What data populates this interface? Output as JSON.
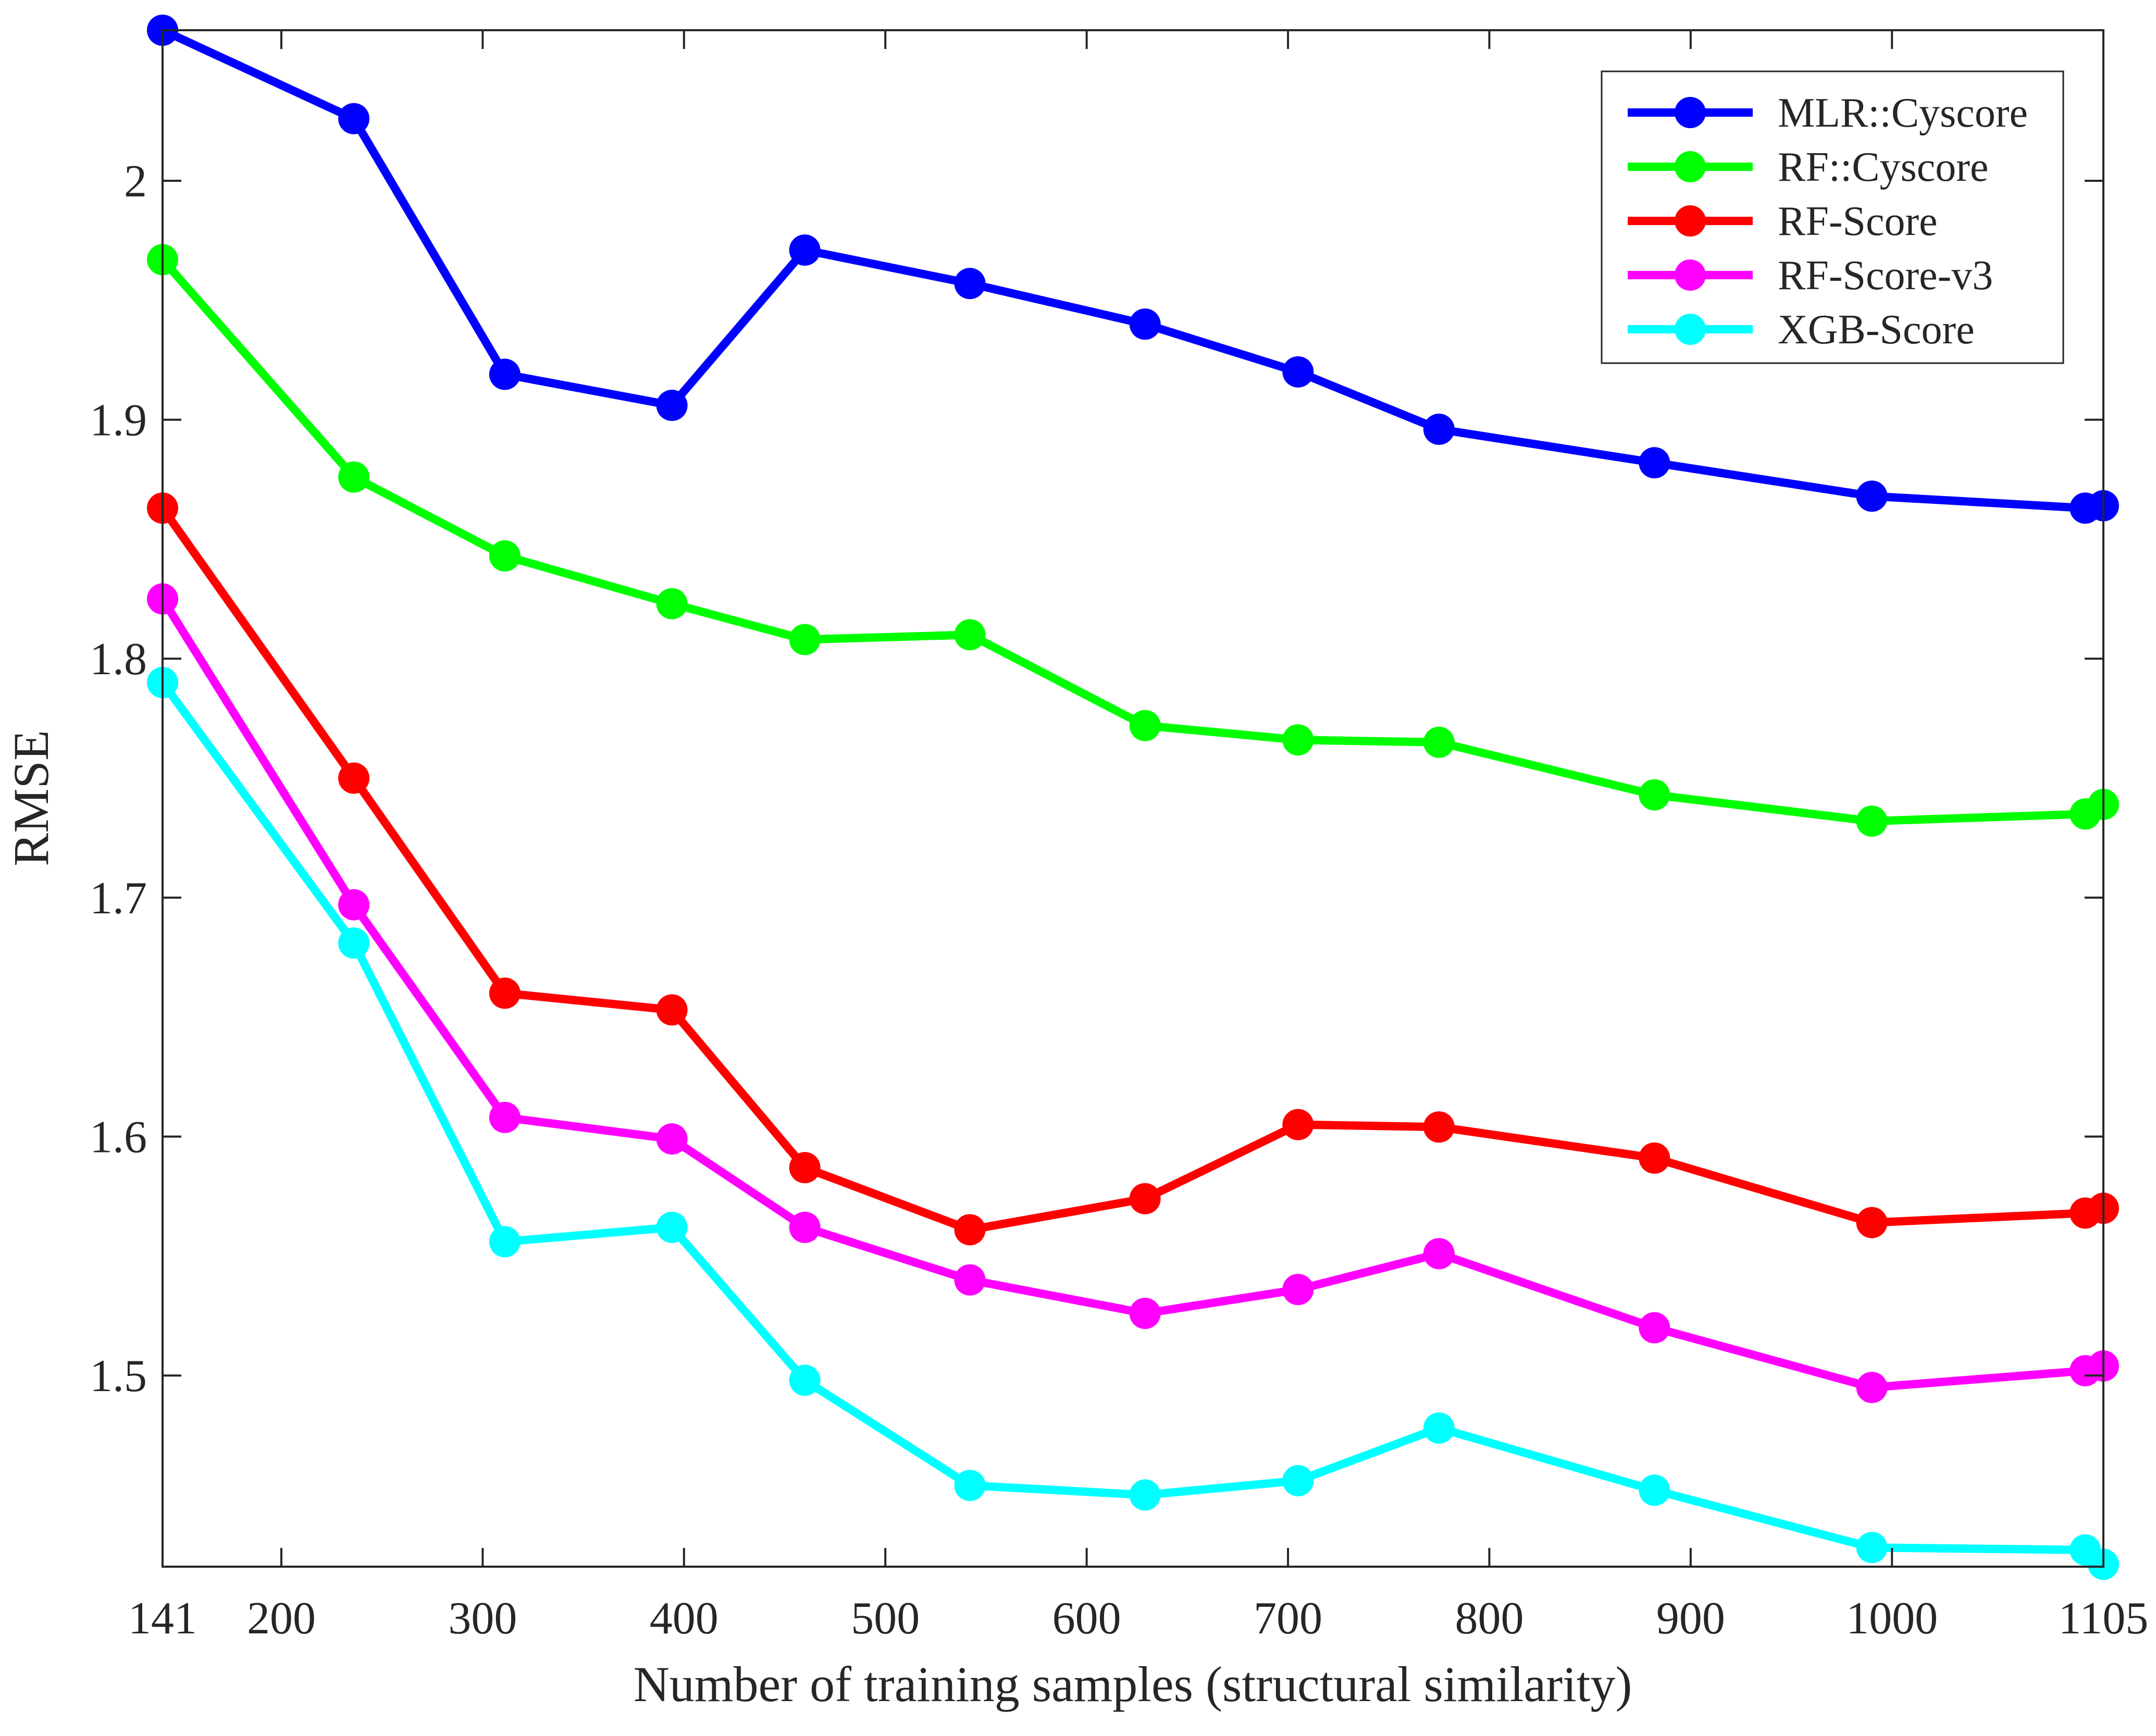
{
  "chart_data": {
    "type": "line",
    "title": "",
    "xlabel": "Number of training samples (structural similarity)",
    "ylabel": "RMSE",
    "xlim": [
      141,
      1105
    ],
    "ylim": [
      1.42,
      2.063
    ],
    "xticks": [
      141,
      200,
      300,
      400,
      500,
      600,
      700,
      800,
      900,
      1000,
      1105
    ],
    "xtick_labels": [
      "141",
      "200",
      "300",
      "400",
      "500",
      "600",
      "700",
      "800",
      "900",
      "1000",
      "1105"
    ],
    "yticks": [
      1.5,
      1.6,
      1.7,
      1.8,
      1.9,
      2.0
    ],
    "ytick_labels": [
      "1.5",
      "1.6",
      "1.7",
      "1.8",
      "1.9",
      "2"
    ],
    "grid": false,
    "legend_position": "top-right",
    "x": [
      141,
      236,
      311,
      394,
      460,
      542,
      629,
      705,
      775,
      882,
      990,
      1096,
      1105
    ],
    "series": [
      {
        "name": "MLR::Cyscore",
        "color": "#0000ff",
        "values": [
          2.063,
          2.026,
          1.919,
          1.906,
          1.971,
          1.957,
          1.94,
          1.92,
          1.896,
          1.882,
          1.868,
          1.863,
          1.864
        ]
      },
      {
        "name": "RF::Cyscore",
        "color": "#00ff00",
        "values": [
          1.967,
          1.876,
          1.843,
          1.823,
          1.808,
          1.81,
          1.772,
          1.766,
          1.765,
          1.743,
          1.732,
          1.735,
          1.739
        ]
      },
      {
        "name": "RF-Score",
        "color": "#ff0000",
        "values": [
          1.863,
          1.75,
          1.66,
          1.653,
          1.587,
          1.561,
          1.574,
          1.605,
          1.604,
          1.591,
          1.564,
          1.568,
          1.57
        ]
      },
      {
        "name": "RF-Score-v3",
        "color": "#ff00ff",
        "values": [
          1.825,
          1.697,
          1.608,
          1.599,
          1.562,
          1.54,
          1.526,
          1.536,
          1.551,
          1.52,
          1.495,
          1.502,
          1.504
        ]
      },
      {
        "name": "XGB-Score",
        "color": "#00ffff",
        "values": [
          1.79,
          1.681,
          1.556,
          1.562,
          1.498,
          1.454,
          1.45,
          1.456,
          1.478,
          1.452,
          1.428,
          1.427,
          1.421
        ]
      }
    ]
  }
}
